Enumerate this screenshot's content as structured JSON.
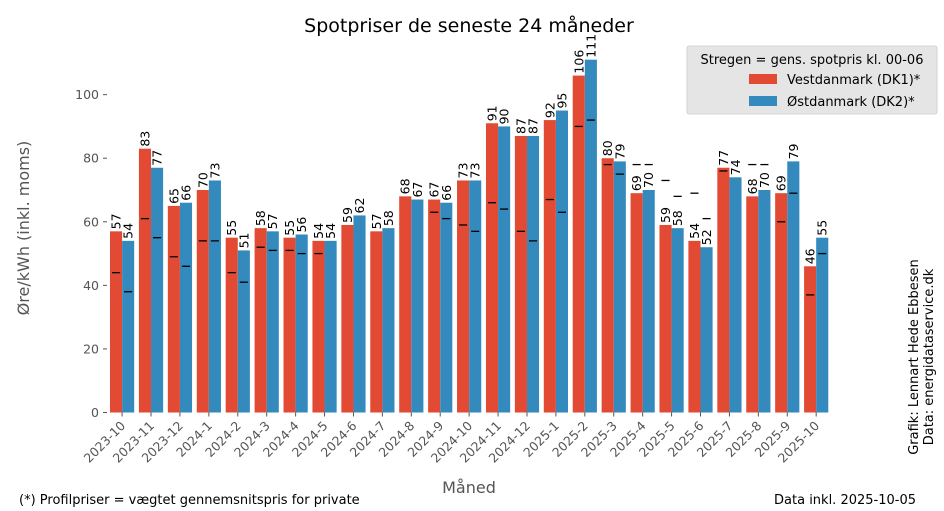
{
  "chart_data": {
    "type": "bar",
    "title": "Spotpriser de seneste 24 måneder",
    "xlabel": "Måned",
    "ylabel": "Øre/kWh (inkl. moms)",
    "ylim": [
      0,
      118
    ],
    "yticks": [
      0,
      20,
      40,
      60,
      80,
      100
    ],
    "grid": false,
    "categories": [
      "2023-10",
      "2023-11",
      "2023-12",
      "2024-1",
      "2024-2",
      "2024-3",
      "2024-4",
      "2024-5",
      "2024-6",
      "2024-7",
      "2024-8",
      "2024-9",
      "2024-10",
      "2024-11",
      "2024-12",
      "2025-1",
      "2025-2",
      "2025-3",
      "2025-4",
      "2025-5",
      "2025-6",
      "2025-7",
      "2025-8",
      "2025-9",
      "2025-10"
    ],
    "series": [
      {
        "name": "Vestdanmark (DK1)*",
        "color": "#e24a33",
        "values": [
          57,
          83,
          65,
          70,
          55,
          58,
          55,
          54,
          59,
          57,
          68,
          67,
          73,
          91,
          87,
          92,
          106,
          80,
          69,
          59,
          54,
          77,
          68,
          69,
          46
        ],
        "line_values": [
          44,
          61,
          49,
          54,
          44,
          52,
          51,
          50,
          null,
          null,
          null,
          63,
          59,
          66,
          57,
          67,
          90,
          78,
          78,
          73,
          69,
          76,
          78,
          60,
          37
        ]
      },
      {
        "name": "Østdanmark (DK2)*",
        "color": "#348abd",
        "values": [
          54,
          77,
          66,
          73,
          51,
          57,
          56,
          54,
          62,
          58,
          67,
          66,
          73,
          90,
          87,
          95,
          111,
          79,
          70,
          58,
          52,
          74,
          70,
          79,
          55
        ],
        "line_values": [
          38,
          55,
          46,
          54,
          41,
          51,
          50,
          null,
          null,
          null,
          null,
          61,
          57,
          64,
          54,
          63,
          92,
          75,
          78,
          68,
          61,
          null,
          78,
          69,
          50
        ]
      }
    ],
    "legend": {
      "title": "Stregen = gens. spotpris kl. 00-06",
      "placement": "top-right"
    }
  },
  "notes": {
    "footnote": "(*) Profilpriser = vægtet gennemsnitspris for private",
    "date": "Data inkl. 2025-10-05",
    "credit_line1": "Grafik: Lennart Hede Ebbesen",
    "credit_line2": "Data: energidataservice.dk"
  }
}
